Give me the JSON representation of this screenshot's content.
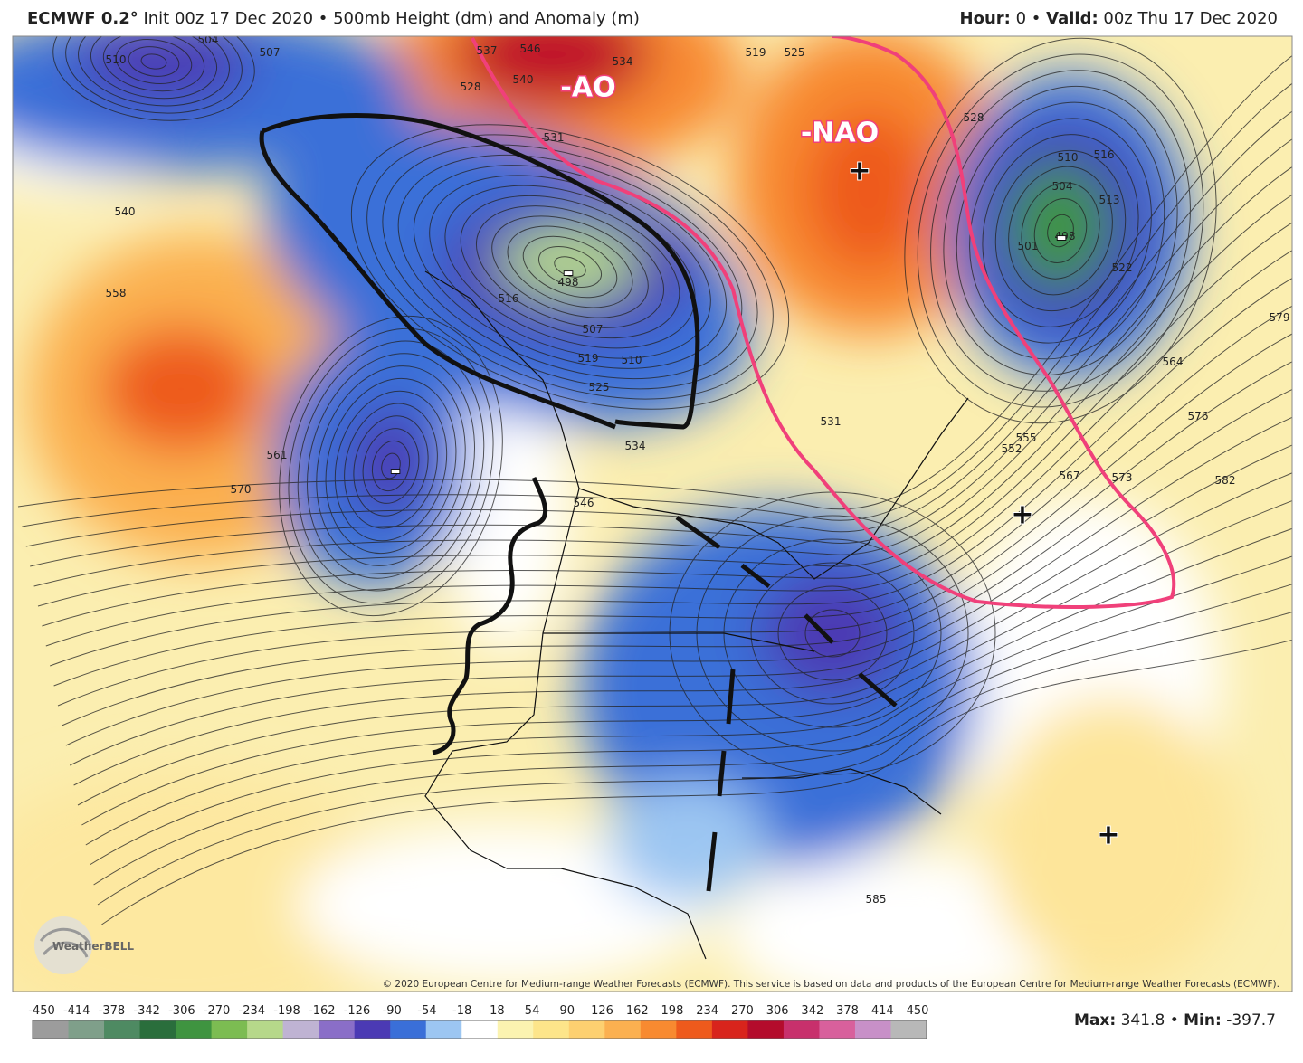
{
  "header": {
    "model": "ECMWF 0.2°",
    "info": "Init 00z 17 Dec 2020 • 500mb Height (dm) and Anomaly (m)",
    "hour_label": "Hour:",
    "hour_value": "0",
    "separator": "•",
    "valid_label": "Valid:",
    "valid_value": "00z Thu 17 Dec 2020"
  },
  "map": {
    "contour_labels": [
      "504",
      "510",
      "507",
      "528",
      "537",
      "546",
      "540",
      "534",
      "531",
      "525",
      "519",
      "540",
      "558",
      "570",
      "561",
      "516",
      "498",
      "507",
      "519",
      "510",
      "525",
      "534",
      "546",
      "528",
      "531",
      "552",
      "555",
      "567",
      "573",
      "564",
      "576",
      "582",
      "579",
      "522",
      "513",
      "516",
      "510",
      "504",
      "501",
      "498",
      "585"
    ],
    "annotations": [
      "-AO",
      "-NAO",
      "+",
      "+",
      "+",
      "-",
      "-",
      "-"
    ],
    "copyright": "© 2020 European Centre for Medium-range Weather Forecasts (ECMWF). This service is based on data and products of the European Centre for Medium-range Weather Forecasts (ECMWF).",
    "logo": "WeatherBELL"
  },
  "colorbar": {
    "ticks": [
      -450,
      -414,
      -378,
      -342,
      -306,
      -270,
      -234,
      -198,
      -162,
      -126,
      -90,
      -54,
      -18,
      18,
      54,
      90,
      126,
      162,
      198,
      234,
      270,
      306,
      342,
      378,
      414,
      450
    ],
    "colors": [
      "#9c9c9c",
      "#7f9f8a",
      "#4e8a62",
      "#2a6e3c",
      "#3f9440",
      "#7cbc52",
      "#b6d88a",
      "#bfb3d3",
      "#8a6ec8",
      "#4b3ab4",
      "#3a6fd8",
      "#9cc6f2",
      "#ffffff",
      "#fbf3b0",
      "#fde58a",
      "#fdd070",
      "#fbb050",
      "#f88a30",
      "#ee5a1c",
      "#d8241c",
      "#b40c2c",
      "#c8306c",
      "#d8609c",
      "#c890c8",
      "#b8b8b8"
    ]
  },
  "stats": {
    "max_label": "Max:",
    "max_value": "341.8",
    "separator": "•",
    "min_label": "Min:",
    "min_value": "-397.7"
  }
}
